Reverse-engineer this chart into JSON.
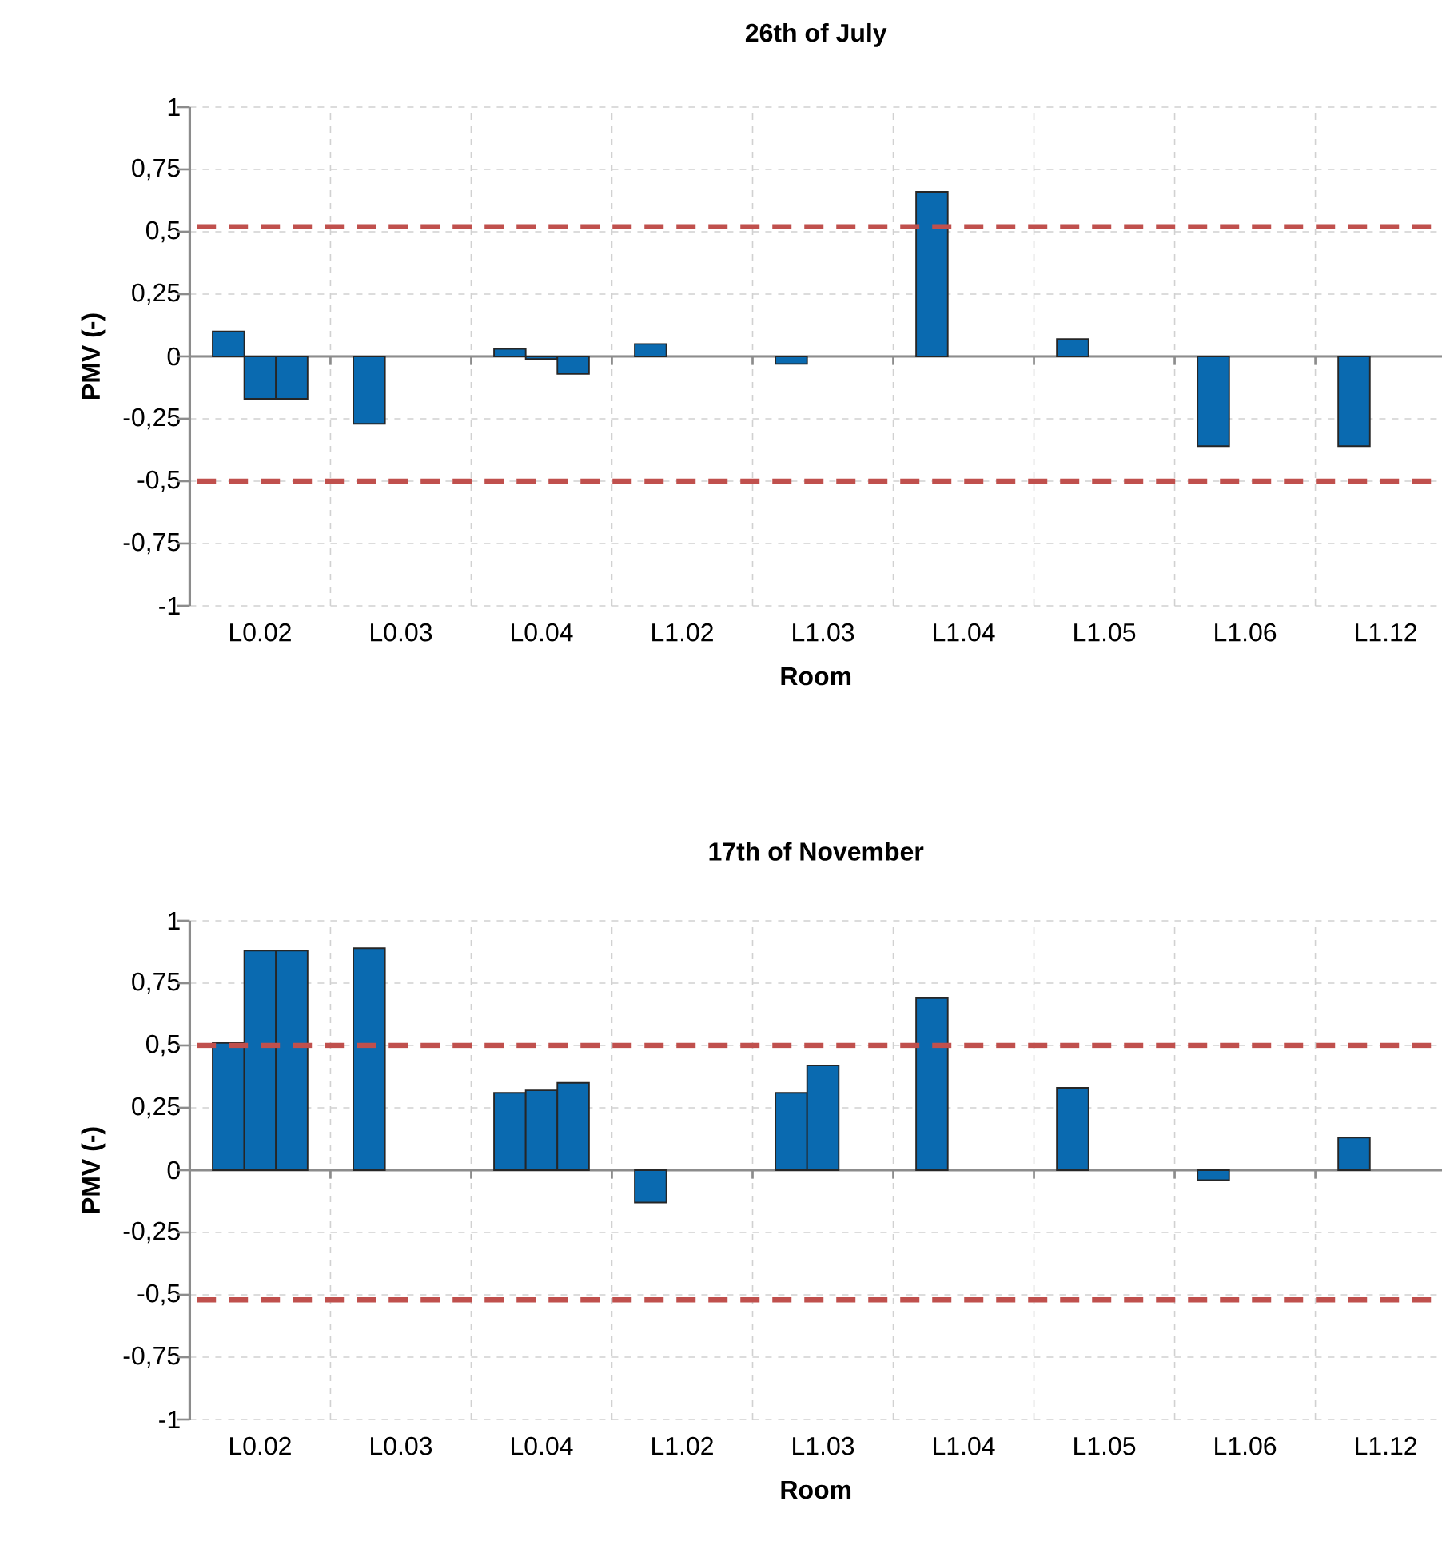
{
  "chart_data": [
    {
      "type": "bar",
      "title": "26th of July",
      "xlabel": "Room",
      "ylabel": "PMV (-)",
      "categories": [
        "L0.02",
        "L0.03",
        "L0.04",
        "L1.02",
        "L1.03",
        "L1.04",
        "L1.05",
        "L1.06",
        "L1.12"
      ],
      "series": [
        {
          "color": "#0a6ab0",
          "values": [
            0.1,
            -0.27,
            0.03,
            0.05,
            -0.03,
            0.66,
            0.07,
            -0.36,
            -0.36
          ]
        },
        {
          "color": "#0a6ab0",
          "values": [
            -0.17,
            null,
            -0.01,
            null,
            null,
            null,
            null,
            null,
            null
          ]
        },
        {
          "color": "#0a6ab0",
          "values": [
            -0.17,
            null,
            -0.07,
            null,
            null,
            null,
            null,
            null,
            null
          ]
        }
      ],
      "ylim": [
        -1,
        1
      ],
      "yticks": [
        -1,
        {
          "value": -0.75,
          "label": "-0,75"
        },
        {
          "value": -0.5,
          "label": "-0,5"
        },
        {
          "value": -0.25,
          "label": "-0,25"
        },
        0,
        {
          "value": 0.25,
          "label": "0,25"
        },
        {
          "value": 0.5,
          "label": "0,5"
        },
        {
          "value": 0.75,
          "label": "0,75"
        },
        1
      ],
      "grid": true,
      "ref_lines": [
        {
          "axis": "y",
          "value": 0.52,
          "color": "#c0504d",
          "line_style": "dashed"
        },
        {
          "axis": "y",
          "value": -0.5,
          "color": "#c0504d",
          "line_style": "dashed"
        }
      ]
    },
    {
      "type": "bar",
      "title": "17th of November",
      "xlabel": "Room",
      "ylabel": "PMV (-)",
      "categories": [
        "L0.02",
        "L0.03",
        "L0.04",
        "L1.02",
        "L1.03",
        "L1.04",
        "L1.05",
        "L1.06",
        "L1.12"
      ],
      "series": [
        {
          "color": "#0a6ab0",
          "values": [
            0.51,
            0.89,
            0.31,
            -0.13,
            0.31,
            0.69,
            0.33,
            -0.04,
            0.13
          ]
        },
        {
          "color": "#0a6ab0",
          "values": [
            0.88,
            null,
            0.32,
            null,
            0.42,
            null,
            null,
            null,
            null
          ]
        },
        {
          "color": "#0a6ab0",
          "values": [
            0.88,
            null,
            0.35,
            null,
            null,
            null,
            null,
            null,
            null
          ]
        }
      ],
      "ylim": [
        -1,
        1
      ],
      "yticks": [
        -1,
        {
          "value": -0.75,
          "label": "-0,75"
        },
        {
          "value": -0.5,
          "label": "-0,5"
        },
        {
          "value": -0.25,
          "label": "-0,25"
        },
        0,
        {
          "value": 0.25,
          "label": "0,25"
        },
        {
          "value": 0.5,
          "label": "0,5"
        },
        {
          "value": 0.75,
          "label": "0,75"
        },
        1
      ],
      "grid": true,
      "ref_lines": [
        {
          "axis": "y",
          "value": 0.5,
          "color": "#c0504d",
          "line_style": "dashed"
        },
        {
          "axis": "y",
          "value": -0.52,
          "color": "#c0504d",
          "line_style": "dashed"
        }
      ]
    }
  ]
}
